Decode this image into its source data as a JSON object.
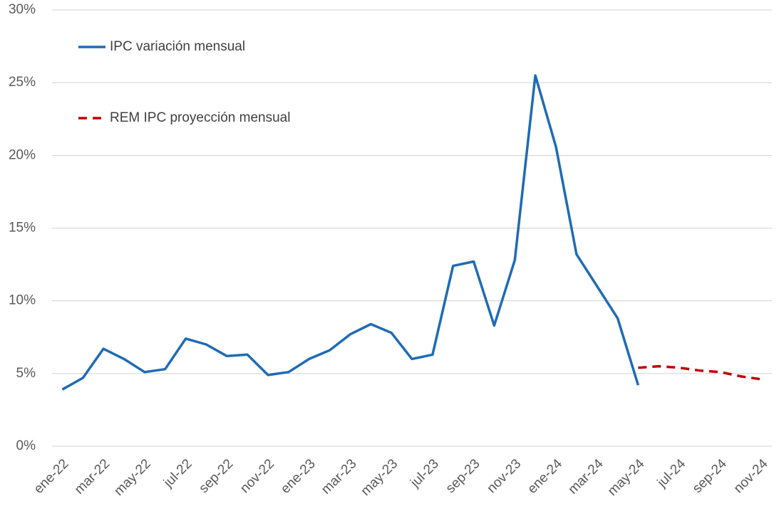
{
  "chart_data": {
    "type": "line",
    "categories": [
      "ene-22",
      null,
      "mar-22",
      null,
      "may-22",
      null,
      "jul-22",
      null,
      "sep-22",
      null,
      "nov-22",
      null,
      "ene-23",
      null,
      "mar-23",
      null,
      "may-23",
      null,
      "jul-23",
      null,
      "sep-23",
      null,
      "nov-23",
      null,
      "ene-24",
      null,
      "mar-24",
      null,
      "may-24",
      null,
      "jul-24",
      null,
      "sep-24",
      null,
      "nov-24"
    ],
    "series": [
      {
        "name": "IPC variación mensual",
        "color": "#1f6bb5",
        "style": "solid",
        "values": [
          3.9,
          4.7,
          6.7,
          6.0,
          5.1,
          5.3,
          7.4,
          7.0,
          6.2,
          6.3,
          4.9,
          5.1,
          6.0,
          6.6,
          7.7,
          8.4,
          7.8,
          6.0,
          6.3,
          12.4,
          12.7,
          8.3,
          12.8,
          25.5,
          20.6,
          13.2,
          11.0,
          8.8,
          4.2,
          null,
          null,
          null,
          null,
          null,
          null
        ]
      },
      {
        "name": "REM IPC proyección mensual",
        "color": "#c00000",
        "style": "dashed",
        "values": [
          null,
          null,
          null,
          null,
          null,
          null,
          null,
          null,
          null,
          null,
          null,
          null,
          null,
          null,
          null,
          null,
          null,
          null,
          null,
          null,
          null,
          null,
          null,
          null,
          null,
          null,
          null,
          null,
          5.4,
          5.5,
          5.4,
          5.2,
          5.1,
          4.8,
          4.6
        ]
      }
    ],
    "ylim": [
      0,
      30
    ],
    "yticks": [
      {
        "value": 0,
        "label": "0%"
      },
      {
        "value": 5,
        "label": "5%"
      },
      {
        "value": 10,
        "label": "10%"
      },
      {
        "value": 15,
        "label": "15%"
      },
      {
        "value": 20,
        "label": "20%"
      },
      {
        "value": 25,
        "label": "25%"
      },
      {
        "value": 30,
        "label": "30%"
      }
    ],
    "grid": true,
    "legend": "upper left"
  }
}
